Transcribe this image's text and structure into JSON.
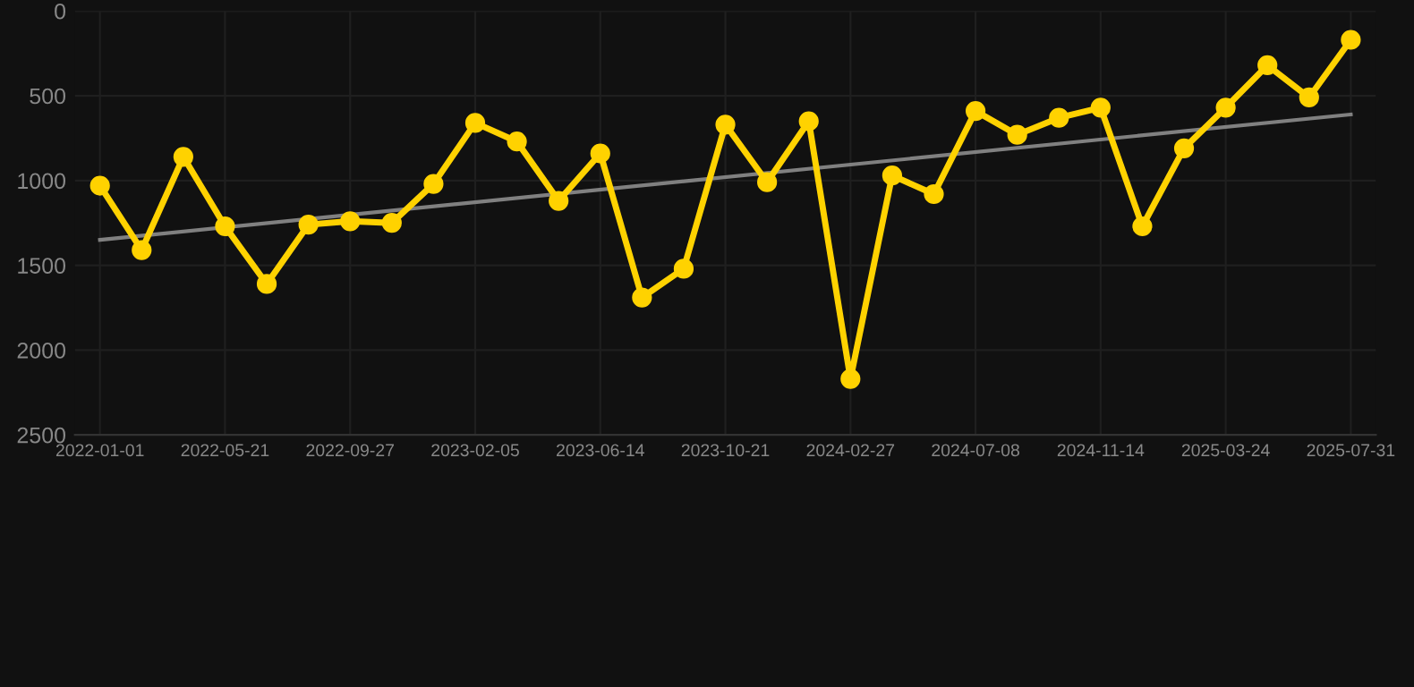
{
  "chart_data": {
    "type": "line",
    "categories": [
      "2022-01-01",
      null,
      null,
      "2022-05-21",
      null,
      null,
      "2022-09-27",
      null,
      null,
      "2023-02-05",
      null,
      null,
      "2023-06-14",
      null,
      null,
      "2023-10-21",
      null,
      null,
      "2024-02-27",
      null,
      null,
      "2024-07-08",
      null,
      null,
      "2024-11-14",
      null,
      null,
      "2025-03-24",
      null,
      null,
      "2025-07-31"
    ],
    "series": [
      {
        "color": "#ffd200",
        "marker": "circle",
        "values": [
          1030,
          1410,
          860,
          1270,
          1610,
          1260,
          1240,
          1250,
          1020,
          660,
          770,
          1120,
          840,
          1690,
          1520,
          670,
          1010,
          650,
          2170,
          970,
          1080,
          590,
          730,
          630,
          570,
          1270,
          810,
          570,
          320,
          510,
          170
        ]
      },
      {
        "type": "line",
        "color": "#808080",
        "marker": "none",
        "values": [
          1350,
          null,
          null,
          null,
          null,
          null,
          null,
          null,
          null,
          null,
          null,
          null,
          null,
          null,
          null,
          null,
          null,
          null,
          null,
          null,
          null,
          null,
          null,
          null,
          null,
          null,
          null,
          null,
          null,
          null,
          610
        ]
      }
    ],
    "ylim": [
      2500,
      0
    ],
    "yticks": [
      0,
      500,
      1000,
      1500,
      2000,
      2500
    ],
    "grid": true,
    "legend": false
  }
}
